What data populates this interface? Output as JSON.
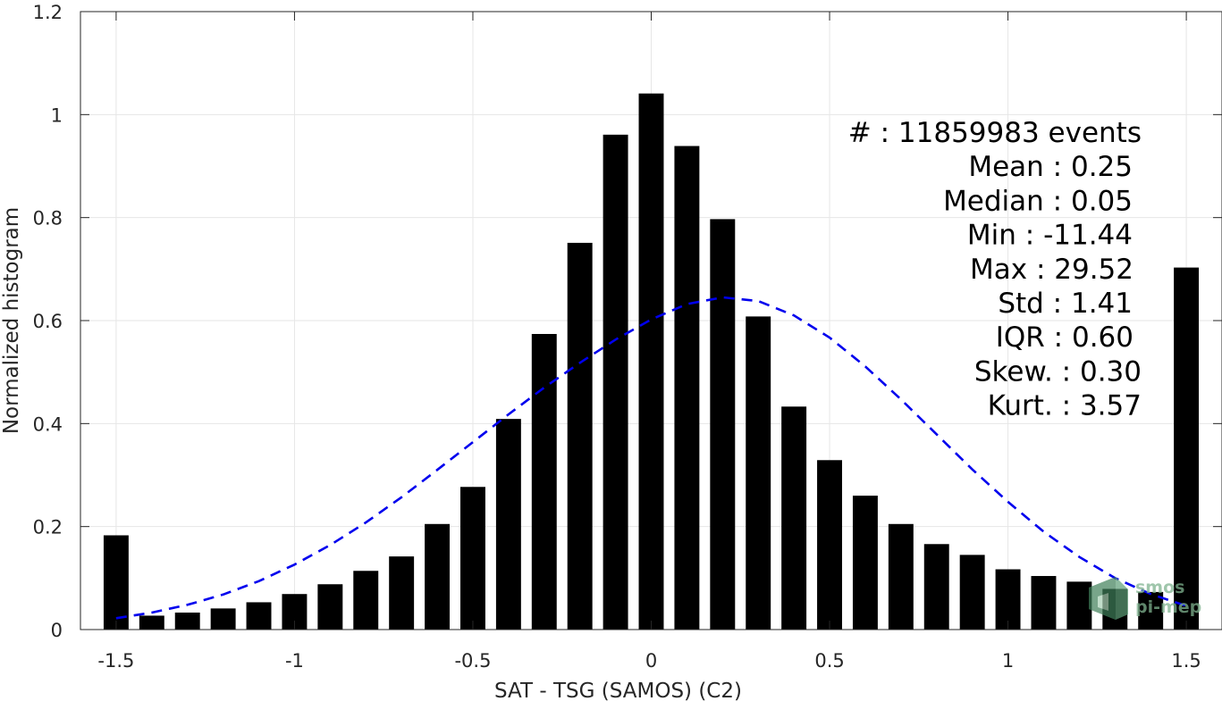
{
  "chart_data": {
    "type": "bar",
    "xlabel": "SAT - TSG (SAMOS) (C2)",
    "ylabel": "Normalized histogram",
    "xlim": [
      -1.6,
      1.6
    ],
    "ylim": [
      0,
      1.2
    ],
    "xticks": [
      -1.5,
      -1,
      -0.5,
      0,
      0.5,
      1,
      1.5
    ],
    "xtick_labels": [
      "-1.5",
      "-1",
      "-0.5",
      "0",
      "0.5",
      "1",
      "1.5"
    ],
    "yticks": [
      0,
      0.2,
      0.4,
      0.6,
      0.8,
      1,
      1.2
    ],
    "ytick_labels": [
      "0",
      "0.2",
      "0.4",
      "0.6",
      "0.8",
      "1",
      "1.2"
    ],
    "grid": true,
    "bar_width": 0.07,
    "x": [
      -1.5,
      -1.4,
      -1.3,
      -1.2,
      -1.1,
      -1.0,
      -0.9,
      -0.8,
      -0.7,
      -0.6,
      -0.5,
      -0.4,
      -0.3,
      -0.2,
      -0.1,
      0.0,
      0.1,
      0.2,
      0.3,
      0.4,
      0.5,
      0.6,
      0.7,
      0.8,
      0.9,
      1.0,
      1.1,
      1.2,
      1.3,
      1.4,
      1.5
    ],
    "values": [
      0.183,
      0.027,
      0.033,
      0.041,
      0.053,
      0.069,
      0.088,
      0.114,
      0.142,
      0.205,
      0.277,
      0.409,
      0.574,
      0.751,
      0.961,
      1.041,
      0.939,
      0.797,
      0.608,
      0.433,
      0.329,
      0.26,
      0.205,
      0.166,
      0.145,
      0.117,
      0.104,
      0.093,
      0.079,
      0.073,
      0.703
    ],
    "bar_color": "#000000",
    "fit_curve": {
      "style": "dashed",
      "color": "#0000ee",
      "x": [
        -1.5,
        -1.4,
        -1.3,
        -1.2,
        -1.1,
        -1.0,
        -0.9,
        -0.8,
        -0.7,
        -0.6,
        -0.5,
        -0.4,
        -0.3,
        -0.2,
        -0.1,
        0.0,
        0.1,
        0.2,
        0.3,
        0.4,
        0.5,
        0.6,
        0.7,
        0.8,
        0.9,
        1.0,
        1.1,
        1.2,
        1.3,
        1.4,
        1.5
      ],
      "y": [
        0.022,
        0.033,
        0.048,
        0.068,
        0.094,
        0.126,
        0.164,
        0.208,
        0.257,
        0.31,
        0.364,
        0.418,
        0.47,
        0.518,
        0.563,
        0.602,
        0.632,
        0.645,
        0.638,
        0.61,
        0.567,
        0.511,
        0.447,
        0.379,
        0.311,
        0.248,
        0.19,
        0.141,
        0.1,
        0.069,
        0.046
      ]
    },
    "annotations": [
      "#  : 11859983 events",
      "Mean : 0.25",
      "Median : 0.05",
      "Min : -11.44",
      "Max : 29.52",
      "Std : 1.41",
      "IQR : 0.60",
      "Skew. : 0.30",
      "Kurt. : 3.57"
    ],
    "logo_text": [
      "smos",
      "pi-mep"
    ],
    "colors": {
      "axis": "#262626",
      "grid": "#e6e6e6",
      "logo": "#7fb38f"
    }
  }
}
